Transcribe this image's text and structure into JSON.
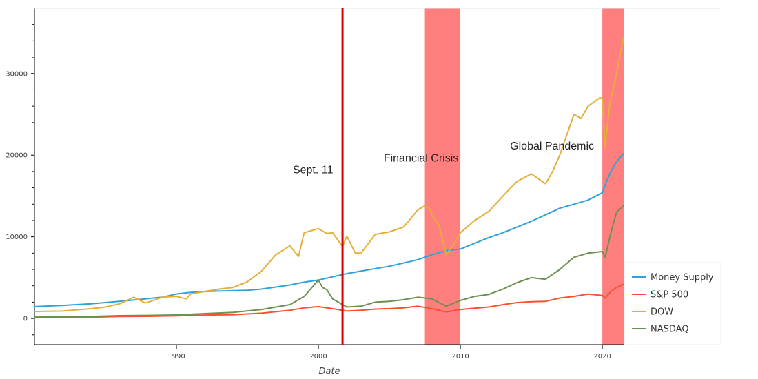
{
  "chart_data": {
    "type": "line",
    "xlabel": "Date",
    "ylabel": "",
    "xlim": [
      1980.0,
      2021.5
    ],
    "ylim": [
      -3200,
      38000
    ],
    "x_ticks": [
      1990,
      2000,
      2010,
      2020
    ],
    "y_ticks": [
      0,
      10000,
      20000,
      30000
    ],
    "legend_placement": "bottom-right",
    "series": [
      {
        "name": "Money Supply",
        "color": "#30a2da",
        "points": [
          [
            1980,
            1450
          ],
          [
            1982,
            1600
          ],
          [
            1984,
            1800
          ],
          [
            1985,
            1950
          ],
          [
            1987,
            2250
          ],
          [
            1989,
            2600
          ],
          [
            1990,
            3000
          ],
          [
            1991,
            3200
          ],
          [
            1992,
            3300
          ],
          [
            1993,
            3350
          ],
          [
            1994,
            3400
          ],
          [
            1995,
            3450
          ],
          [
            1996,
            3600
          ],
          [
            1997,
            3850
          ],
          [
            1998,
            4100
          ],
          [
            1999,
            4450
          ],
          [
            2000,
            4700
          ],
          [
            2001,
            5100
          ],
          [
            2002,
            5500
          ],
          [
            2003,
            5800
          ],
          [
            2004,
            6100
          ],
          [
            2005,
            6400
          ],
          [
            2006,
            6800
          ],
          [
            2007,
            7200
          ],
          [
            2008,
            7800
          ],
          [
            2009,
            8300
          ],
          [
            2010,
            8500
          ],
          [
            2011,
            9200
          ],
          [
            2012,
            9900
          ],
          [
            2013,
            10500
          ],
          [
            2014,
            11200
          ],
          [
            2015,
            11900
          ],
          [
            2016,
            12700
          ],
          [
            2017,
            13500
          ],
          [
            2018,
            14000
          ],
          [
            2019,
            14500
          ],
          [
            2020,
            15400
          ],
          [
            2020.3,
            16800
          ],
          [
            2020.6,
            18000
          ],
          [
            2021,
            19200
          ],
          [
            2021.5,
            20200
          ]
        ]
      },
      {
        "name": "S&P 500",
        "color": "#fc4f30",
        "points": [
          [
            1980,
            110
          ],
          [
            1982,
            120
          ],
          [
            1984,
            160
          ],
          [
            1986,
            240
          ],
          [
            1988,
            260
          ],
          [
            1990,
            330
          ],
          [
            1992,
            420
          ],
          [
            1994,
            460
          ],
          [
            1996,
            650
          ],
          [
            1998,
            1000
          ],
          [
            1999,
            1300
          ],
          [
            2000,
            1450
          ],
          [
            2001,
            1200
          ],
          [
            2002,
            900
          ],
          [
            2003,
            1000
          ],
          [
            2004,
            1150
          ],
          [
            2005,
            1200
          ],
          [
            2006,
            1300
          ],
          [
            2007,
            1500
          ],
          [
            2008,
            1200
          ],
          [
            2009,
            800
          ],
          [
            2010,
            1100
          ],
          [
            2011,
            1250
          ],
          [
            2012,
            1400
          ],
          [
            2013,
            1700
          ],
          [
            2014,
            1950
          ],
          [
            2015,
            2050
          ],
          [
            2016,
            2100
          ],
          [
            2017,
            2500
          ],
          [
            2018,
            2700
          ],
          [
            2019,
            3000
          ],
          [
            2020,
            2800
          ],
          [
            2020.2,
            2500
          ],
          [
            2020.6,
            3300
          ],
          [
            2021,
            3800
          ],
          [
            2021.5,
            4200
          ]
        ]
      },
      {
        "name": "DOW",
        "color": "#e5ae38",
        "points": [
          [
            1980,
            850
          ],
          [
            1982,
            900
          ],
          [
            1984,
            1200
          ],
          [
            1985,
            1400
          ],
          [
            1986,
            1800
          ],
          [
            1987,
            2600
          ],
          [
            1987.8,
            1900
          ],
          [
            1988,
            2000
          ],
          [
            1989,
            2600
          ],
          [
            1990,
            2700
          ],
          [
            1990.7,
            2400
          ],
          [
            1991,
            3000
          ],
          [
            1992,
            3300
          ],
          [
            1993,
            3600
          ],
          [
            1994,
            3800
          ],
          [
            1995,
            4500
          ],
          [
            1996,
            5800
          ],
          [
            1997,
            7800
          ],
          [
            1998,
            8900
          ],
          [
            1998.6,
            7600
          ],
          [
            1999,
            10500
          ],
          [
            2000,
            11000
          ],
          [
            2000.6,
            10400
          ],
          [
            2001,
            10500
          ],
          [
            2001.7,
            8800
          ],
          [
            2002,
            10100
          ],
          [
            2002.6,
            8000
          ],
          [
            2003,
            8000
          ],
          [
            2004,
            10300
          ],
          [
            2005,
            10600
          ],
          [
            2006,
            11200
          ],
          [
            2007,
            13300
          ],
          [
            2007.5,
            13800
          ],
          [
            2007.9,
            13300
          ],
          [
            2008,
            12600
          ],
          [
            2008.5,
            11400
          ],
          [
            2009,
            7800
          ],
          [
            2009.5,
            9000
          ],
          [
            2010,
            10500
          ],
          [
            2011,
            12000
          ],
          [
            2012,
            13100
          ],
          [
            2013,
            15000
          ],
          [
            2014,
            16800
          ],
          [
            2015,
            17700
          ],
          [
            2016,
            16500
          ],
          [
            2016.5,
            18000
          ],
          [
            2017,
            20000
          ],
          [
            2018,
            25000
          ],
          [
            2018.5,
            24500
          ],
          [
            2019,
            26000
          ],
          [
            2019.8,
            27000
          ],
          [
            2020,
            27000
          ],
          [
            2020.2,
            21000
          ],
          [
            2020.5,
            26000
          ],
          [
            2021,
            30000
          ],
          [
            2021.5,
            34500
          ]
        ]
      },
      {
        "name": "NASDAQ",
        "color": "#6d904f",
        "points": [
          [
            1980,
            170
          ],
          [
            1984,
            250
          ],
          [
            1986,
            350
          ],
          [
            1988,
            380
          ],
          [
            1990,
            430
          ],
          [
            1992,
            600
          ],
          [
            1994,
            750
          ],
          [
            1996,
            1100
          ],
          [
            1998,
            1700
          ],
          [
            1999,
            2700
          ],
          [
            2000,
            4700
          ],
          [
            2000.3,
            3800
          ],
          [
            2000.6,
            3500
          ],
          [
            2001,
            2400
          ],
          [
            2002,
            1400
          ],
          [
            2003,
            1500
          ],
          [
            2004,
            2000
          ],
          [
            2005,
            2100
          ],
          [
            2006,
            2300
          ],
          [
            2007,
            2600
          ],
          [
            2008,
            2400
          ],
          [
            2009,
            1500
          ],
          [
            2010,
            2200
          ],
          [
            2011,
            2700
          ],
          [
            2012,
            2950
          ],
          [
            2013,
            3600
          ],
          [
            2014,
            4400
          ],
          [
            2015,
            5000
          ],
          [
            2016,
            4800
          ],
          [
            2017,
            6000
          ],
          [
            2018,
            7500
          ],
          [
            2019,
            8000
          ],
          [
            2020,
            8200
          ],
          [
            2020.2,
            7500
          ],
          [
            2020.6,
            10500
          ],
          [
            2021,
            13000
          ],
          [
            2021.5,
            13800
          ]
        ]
      }
    ],
    "events": [
      {
        "type": "line",
        "x": 2001.7,
        "color": "#dd0000"
      },
      {
        "type": "band",
        "x0": 2007.5,
        "x1": 2010.0,
        "color": "#ff0000"
      },
      {
        "type": "band",
        "x0": 2020.0,
        "x1": 2021.5,
        "color": "#ff0000"
      }
    ],
    "annotations": [
      {
        "text": "Sept. 11",
        "x": 1998.2,
        "y": 17800
      },
      {
        "text": "Financial Crisis",
        "x": 2004.6,
        "y": 19200
      },
      {
        "text": "Global Pandemic",
        "x": 2013.5,
        "y": 20700
      }
    ]
  }
}
